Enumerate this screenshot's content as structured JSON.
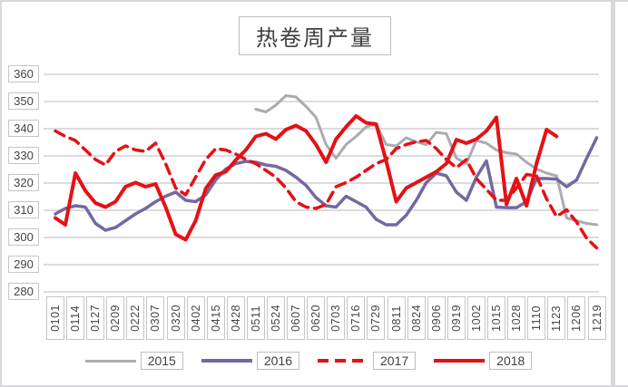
{
  "chart_data": {
    "type": "line",
    "title": "热卷周产量",
    "xlabel": "",
    "ylabel": "",
    "grid": true,
    "legend_position": "bottom",
    "y_axis": {
      "min": 280,
      "max": 360,
      "step": 10,
      "ticks": [
        "360",
        "350",
        "340",
        "330",
        "320",
        "310",
        "300",
        "290",
        "280"
      ]
    },
    "x_axis": {
      "note": "weekly data points, one tick label shown for every second point",
      "points_per_label": 2,
      "labels": [
        "0101",
        "0114",
        "0127",
        "0209",
        "0222",
        "0307",
        "0320",
        "0402",
        "0415",
        "0428",
        "0511",
        "0524",
        "0607",
        "0620",
        "0703",
        "0716",
        "0729",
        "0811",
        "0824",
        "0906",
        "0919",
        "1002",
        "1015",
        "1028",
        "1110",
        "1123",
        "1206",
        "1219"
      ]
    },
    "series": [
      {
        "name": "2015",
        "color": "#acaab2",
        "style": "solid",
        "width": 3,
        "values": [
          null,
          null,
          null,
          null,
          null,
          null,
          null,
          null,
          null,
          null,
          null,
          null,
          null,
          null,
          null,
          null,
          null,
          null,
          null,
          null,
          347,
          346,
          348.5,
          352,
          351.5,
          348,
          344,
          334,
          329,
          334,
          337,
          340.5,
          341.5,
          334,
          333.5,
          336.5,
          335,
          334,
          338.5,
          338,
          329,
          327,
          335.5,
          334.5,
          332,
          331,
          330.5,
          327.5,
          325,
          323.5,
          322.5,
          307,
          306,
          305,
          304.5
        ]
      },
      {
        "name": "2016",
        "color": "#7568a0",
        "style": "solid",
        "width": 3.5,
        "values": [
          308.5,
          310.5,
          311.5,
          311,
          305,
          302.5,
          303.5,
          306,
          308.5,
          310.5,
          313,
          315,
          316.5,
          313.5,
          313,
          315.5,
          321,
          325,
          327,
          327.8,
          327.5,
          326.5,
          326,
          324.5,
          322,
          319,
          314.5,
          311.5,
          311,
          315,
          313,
          311,
          306.5,
          304.5,
          304.5,
          308,
          313.5,
          320,
          323.5,
          322.5,
          316.5,
          313.5,
          322,
          328,
          311,
          310.8,
          310.8,
          313,
          321.5,
          321.5,
          321.3,
          318.5,
          321,
          329,
          336.5
        ]
      },
      {
        "name": "2017",
        "color": "#e41116",
        "style": "dashed",
        "width": 3.5,
        "values": [
          339,
          337,
          335.5,
          332,
          328.5,
          326.5,
          331.5,
          333.5,
          332,
          331.5,
          334.5,
          327,
          318,
          315.5,
          322,
          328.5,
          332.5,
          332,
          330.5,
          328.5,
          327,
          324.5,
          322,
          318,
          313,
          311,
          310.5,
          312,
          318.5,
          320,
          322,
          324.5,
          327,
          328.5,
          332.5,
          334,
          335,
          335.5,
          332.5,
          328.5,
          325.5,
          328.5,
          321.5,
          317.5,
          313.5,
          313.5,
          318,
          323,
          322.5,
          314,
          307.5,
          310,
          305.5,
          299.5,
          296
        ]
      },
      {
        "name": "2018",
        "color": "#e41116",
        "style": "solid",
        "width": 4,
        "values": [
          307,
          304.5,
          323.5,
          317,
          312.5,
          311,
          313,
          318.5,
          320,
          318.5,
          319.5,
          311,
          301,
          299,
          306,
          317.8,
          322.8,
          324,
          328.3,
          332,
          337,
          338,
          336,
          339.5,
          341,
          339,
          334,
          327.5,
          336,
          340.5,
          344.5,
          342,
          341.5,
          328,
          313,
          318,
          320,
          322,
          324,
          327,
          335.8,
          334.5,
          336,
          339,
          344,
          312,
          321.5,
          311.5,
          327,
          339.5,
          337,
          null,
          null,
          null,
          null
        ]
      }
    ]
  }
}
